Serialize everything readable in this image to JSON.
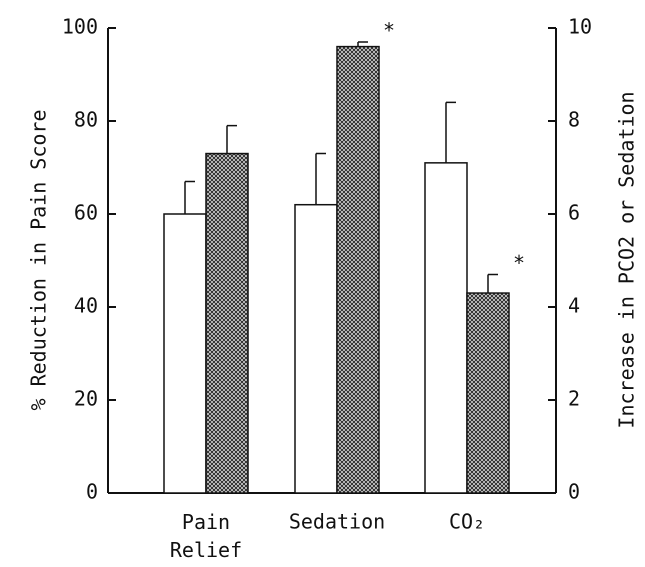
{
  "chart_data": {
    "type": "bar",
    "categories": [
      "Pain Relief",
      "Sedation",
      "CO₂"
    ],
    "series": [
      {
        "color": "#ffffff",
        "values": [
          60,
          62,
          71
        ],
        "errors": [
          7,
          11,
          13
        ]
      },
      {
        "color": "#6a6a6a",
        "hatched": true,
        "values": [
          73,
          96,
          43
        ],
        "errors": [
          6,
          1,
          4
        ],
        "significance": [
          null,
          "*",
          "*"
        ]
      }
    ],
    "ylabel": "% Reduction in Pain Score",
    "y2label": "Increase in PCO2 or Sedation",
    "ylim": [
      0,
      100
    ],
    "yticks": [
      0,
      20,
      40,
      60,
      80,
      100
    ],
    "y2lim": [
      0,
      10
    ],
    "y2ticks": [
      0,
      2,
      4,
      6,
      8,
      10
    ],
    "grid": false
  }
}
